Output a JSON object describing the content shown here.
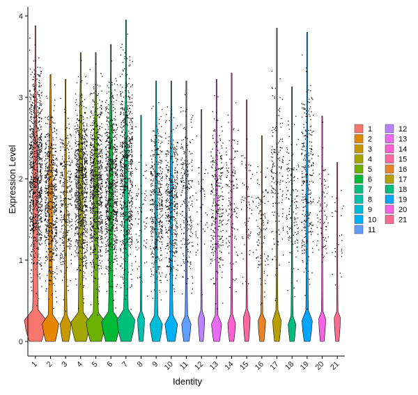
{
  "chart_data": {
    "type": "violin",
    "xlabel": "Identity",
    "ylabel": "Expression Level",
    "ylim": [
      -0.2,
      4.15
    ],
    "yticks": [
      0,
      1,
      2,
      3,
      4
    ],
    "categories": [
      "1",
      "2",
      "3",
      "4",
      "5",
      "6",
      "7",
      "8",
      "9",
      "10",
      "11",
      "12",
      "13",
      "14",
      "15",
      "16",
      "17",
      "18",
      "19",
      "20",
      "21"
    ],
    "colors": [
      "#F8766D",
      "#E58700",
      "#C99800",
      "#A3A500",
      "#6BB100",
      "#00BA38",
      "#00BF7D",
      "#00C0AF",
      "#00BCD8",
      "#00B0F6",
      "#619CFF",
      "#B983FF",
      "#E76BF3",
      "#FD61D1",
      "#FF67A4",
      "#E88526",
      "#B79F00",
      "#00BF7D",
      "#00A5FF",
      "#F564E3",
      "#FF6C91"
    ],
    "max_values": [
      3.88,
      3.28,
      3.22,
      3.55,
      3.55,
      3.65,
      3.95,
      2.78,
      3.2,
      3.2,
      3.2,
      2.85,
      3.22,
      3.3,
      2.97,
      2.53,
      3.85,
      3.13,
      3.8,
      2.77,
      2.2
    ],
    "point_density": [
      1.0,
      0.7,
      0.35,
      0.85,
      0.85,
      0.8,
      0.75,
      0.08,
      0.45,
      0.45,
      0.25,
      0.05,
      0.3,
      0.15,
      0.07,
      0.12,
      0.18,
      0.15,
      0.3,
      0.08,
      0.03
    ],
    "legend": {
      "entries": [
        "1",
        "2",
        "3",
        "4",
        "5",
        "6",
        "7",
        "8",
        "9",
        "10",
        "11",
        "12",
        "13",
        "14",
        "15",
        "16",
        "17",
        "18",
        "19",
        "20",
        "21"
      ],
      "placement": "right",
      "columns": 2
    },
    "grid": false
  }
}
